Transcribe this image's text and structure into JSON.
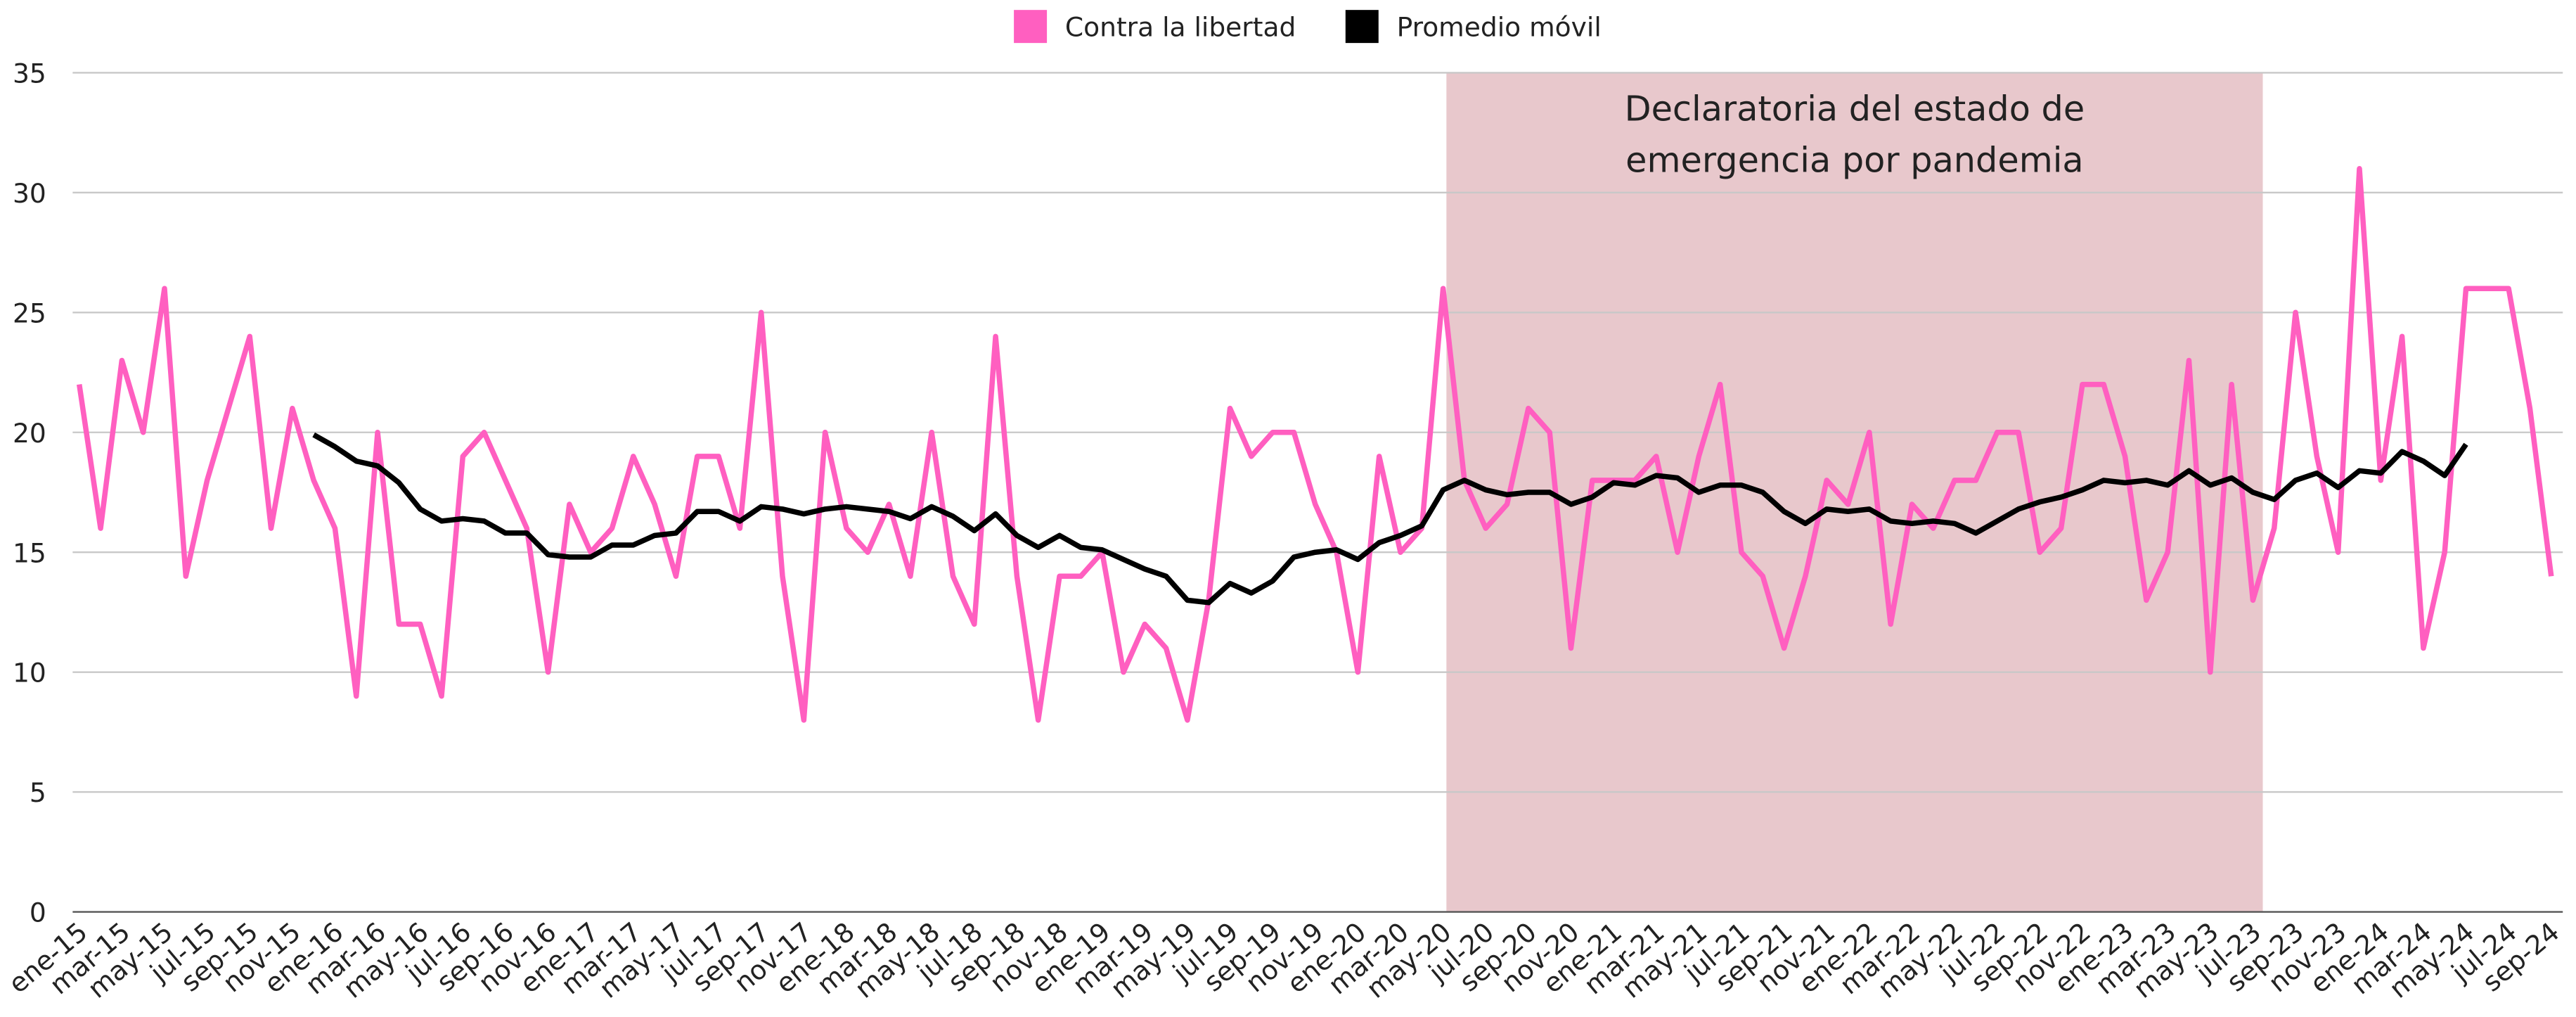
{
  "chart_data": {
    "type": "line",
    "categories": [
      "ene-15",
      null,
      "mar-15",
      null,
      "may-15",
      null,
      "jul-15",
      null,
      "sep-15",
      null,
      "nov-15",
      null,
      "ene-16",
      null,
      "mar-16",
      null,
      "may-16",
      null,
      "jul-16",
      null,
      "sep-16",
      null,
      "nov-16",
      null,
      "ene-17",
      null,
      "mar-17",
      null,
      "may-17",
      null,
      "jul-17",
      null,
      "sep-17",
      null,
      "nov-17",
      null,
      "ene-18",
      null,
      "mar-18",
      null,
      "may-18",
      null,
      "jul-18",
      null,
      "sep-18",
      null,
      "nov-18",
      null,
      "ene-19",
      null,
      "mar-19",
      null,
      "may-19",
      null,
      "jul-19",
      null,
      "sep-19",
      null,
      "nov-19",
      null,
      "ene-20",
      null,
      "mar-20",
      null,
      "may-20",
      null,
      "jul-20",
      null,
      "sep-20",
      null,
      "nov-20",
      null,
      "ene-21",
      null,
      "mar-21",
      null,
      "may-21",
      null,
      "jul-21",
      null,
      "sep-21",
      null,
      "nov-21",
      null,
      "ene-22",
      null,
      "mar-22",
      null,
      "may-22",
      null,
      "jul-22",
      null,
      "sep-22",
      null,
      "nov-22",
      null,
      "ene-23",
      null,
      "mar-23",
      null,
      "may-23",
      null,
      "jul-23",
      null,
      "sep-23",
      null,
      "nov-23",
      null,
      "ene-24",
      null,
      "mar-24",
      null,
      "may-24",
      null,
      "jul-24",
      null,
      "sep-24"
    ],
    "series": [
      {
        "name": "Contra la libertad",
        "color": "#ff5fc0",
        "values": [
          22,
          16,
          23,
          20,
          26,
          14,
          18,
          21,
          24,
          16,
          21,
          18,
          16,
          9,
          20,
          12,
          12,
          9,
          19,
          20,
          18,
          16,
          10,
          17,
          15,
          16,
          19,
          17,
          14,
          19,
          19,
          16,
          25,
          14,
          8,
          20,
          16,
          15,
          17,
          14,
          20,
          14,
          12,
          24,
          14,
          8,
          14,
          14,
          15,
          10,
          12,
          11,
          8,
          13,
          21,
          19,
          20,
          20,
          17,
          15,
          10,
          19,
          15,
          16,
          26,
          18,
          16,
          17,
          21,
          20,
          11,
          18,
          18,
          18,
          19,
          15,
          19,
          22,
          15,
          14,
          11,
          14,
          18,
          17,
          20,
          12,
          17,
          16,
          18,
          18,
          20,
          20,
          15,
          16,
          22,
          22,
          19,
          13,
          15,
          23,
          10,
          22,
          13,
          16,
          25,
          19,
          15,
          31,
          18,
          24,
          11,
          15,
          26,
          26,
          26,
          21,
          14
        ]
      },
      {
        "name": "Promedio móvil",
        "color": "#000000",
        "values": [
          null,
          null,
          null,
          null,
          null,
          null,
          null,
          null,
          null,
          null,
          null,
          19.9,
          19.4,
          18.8,
          18.6,
          17.9,
          16.8,
          16.3,
          16.4,
          16.3,
          15.8,
          15.8,
          14.9,
          14.8,
          14.8,
          15.3,
          15.3,
          15.7,
          15.8,
          16.7,
          16.7,
          16.3,
          16.9,
          16.8,
          16.6,
          16.8,
          16.9,
          16.8,
          16.7,
          16.4,
          16.9,
          16.5,
          15.9,
          16.6,
          15.7,
          15.2,
          15.7,
          15.2,
          15.1,
          14.7,
          14.3,
          14.0,
          13.0,
          12.9,
          13.7,
          13.3,
          13.8,
          14.8,
          15.0,
          15.1,
          14.7,
          15.4,
          15.7,
          16.1,
          17.6,
          18.0,
          17.6,
          17.4,
          17.5,
          17.5,
          17.0,
          17.3,
          17.9,
          17.8,
          18.2,
          18.1,
          17.5,
          17.8,
          17.8,
          17.5,
          16.7,
          16.2,
          16.8,
          16.7,
          16.8,
          16.3,
          16.2,
          16.3,
          16.2,
          15.8,
          16.3,
          16.8,
          17.1,
          17.3,
          17.6,
          18.0,
          17.9,
          18.0,
          17.8,
          18.4,
          17.8,
          18.1,
          17.5,
          17.2,
          18.0,
          18.3,
          17.7,
          18.4,
          18.3,
          19.2,
          18.8,
          18.2,
          19.5,
          null,
          null,
          null,
          null
        ]
      }
    ],
    "ylim": [
      0,
      35
    ],
    "yticks": [
      0,
      5,
      10,
      15,
      20,
      25,
      30,
      35
    ],
    "grid": true,
    "legend": "top",
    "shade": {
      "label": [
        "Declaratoria del estado de",
        "emergencia por pandemia"
      ],
      "from": "may-20",
      "to": "jul-23",
      "color": "#e8c8cc"
    }
  }
}
